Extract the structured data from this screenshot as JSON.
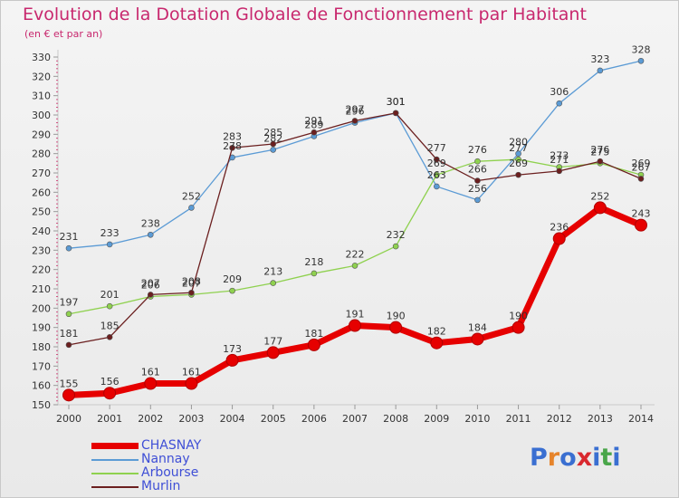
{
  "header": {
    "title": "Evolution de la Dotation Globale de Fonctionnement par Habitant",
    "subtitle": "(en € et par an)"
  },
  "logo": {
    "text": "Proxiti",
    "letters": [
      "P",
      "r",
      "o",
      "x",
      "i",
      "t",
      "i"
    ],
    "colors": [
      "#3a6fd1",
      "#e6842b",
      "#3a6fd1",
      "#d9282e",
      "#3a6fd1",
      "#4aa64a",
      "#3a6fd1"
    ]
  },
  "chart_data": {
    "type": "line",
    "title": "Evolution de la Dotation Globale de Fonctionnement par Habitant",
    "subtitle": "(en € et par an)",
    "x": [
      "2000",
      "2001",
      "2002",
      "2003",
      "2004",
      "2005",
      "2006",
      "2007",
      "2008",
      "2009",
      "2010",
      "2011",
      "2012",
      "2013",
      "2014"
    ],
    "ylim": [
      150,
      330
    ],
    "yticks": [
      150,
      160,
      170,
      180,
      190,
      200,
      210,
      220,
      230,
      240,
      250,
      260,
      270,
      280,
      290,
      300,
      310,
      320,
      330
    ],
    "grid": false,
    "legend": "bottom-left",
    "series": [
      {
        "name": "CHASNAY",
        "color": "#e60000",
        "values": [
          155,
          156,
          161,
          161,
          173,
          177,
          181,
          191,
          190,
          182,
          184,
          190,
          236,
          252,
          243
        ]
      },
      {
        "name": "Nannay",
        "color": "#5b9bd5",
        "values": [
          231,
          233,
          238,
          252,
          278,
          282,
          289,
          296,
          301,
          263,
          256,
          280,
          306,
          323,
          328
        ]
      },
      {
        "name": "Arbourse",
        "color": "#8fd14f",
        "values": [
          197,
          201,
          206,
          207,
          209,
          213,
          218,
          222,
          232,
          269,
          276,
          277,
          273,
          275,
          269
        ]
      },
      {
        "name": "Murlin",
        "color": "#6b1f1f",
        "values": [
          181,
          185,
          207,
          208,
          283,
          285,
          291,
          297,
          301,
          277,
          266,
          269,
          271,
          276,
          267
        ]
      }
    ]
  }
}
